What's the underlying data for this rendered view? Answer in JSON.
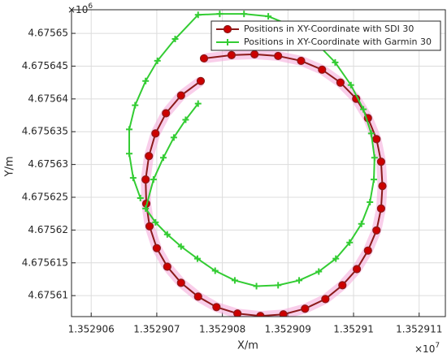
{
  "chart_data": {
    "type": "line",
    "xlabel": "X/m",
    "ylabel": "Y/m",
    "x_multiplier": {
      "base": "×10",
      "exponent": "7"
    },
    "y_multiplier": {
      "base": "×10",
      "exponent": "6"
    },
    "xlim": [
      1.3529057,
      1.3529114
    ],
    "ylim": [
      4.6756068,
      4.6756536
    ],
    "xticks": [
      1.352906,
      1.352907,
      1.352908,
      1.352909,
      1.35291,
      1.352911
    ],
    "yticks": [
      4.67561,
      4.675615,
      4.67562,
      4.675625,
      4.67563,
      4.675635,
      4.67564,
      4.675645,
      4.67565
    ],
    "grid": true,
    "legend": "top-right",
    "series": [
      {
        "name": "Positions in XY-Coordinate with SDI 30",
        "color": "#cc0000",
        "line_color": "#8b1a1a",
        "marker": "circle",
        "x": [
          1.35290767,
          1.35290737,
          1.35290714,
          1.35290698,
          1.35290688,
          1.35290683,
          1.35290684,
          1.35290689,
          1.352907,
          1.35290716,
          1.35290737,
          1.35290763,
          1.35290791,
          1.35290823,
          1.35290858,
          1.35290893,
          1.35290926,
          1.35290957,
          1.35290983,
          1.35291005,
          1.35291022,
          1.35291035,
          1.35291042,
          1.35291044,
          1.35291042,
          1.35291035,
          1.35291022,
          1.35291004,
          1.3529098,
          1.35290952,
          1.3529092,
          1.35290885,
          1.35290849,
          1.35290814,
          1.35290772
        ],
        "values": [
          4.67564273,
          4.67564052,
          4.67563781,
          4.67563473,
          4.67563128,
          4.67562771,
          4.67562402,
          4.67562057,
          4.67561724,
          4.67561441,
          4.67561195,
          4.67560985,
          4.67560825,
          4.67560727,
          4.6756069,
          4.67560714,
          4.67560801,
          4.67560948,
          4.67561158,
          4.67561404,
          4.67561687,
          4.67561995,
          4.67562328,
          4.67562672,
          4.67563042,
          4.67563387,
          4.67563707,
          4.67564003,
          4.67564249,
          4.67564446,
          4.67564581,
          4.67564655,
          4.6756468,
          4.67564668,
          4.67564618
        ]
      },
      {
        "name": "Positions in XY-Coordinate with Garmin 30",
        "color": "#33cc33",
        "line_color": "#33cc33",
        "marker": "plus",
        "x": [
          1.35290763,
          1.35290744,
          1.35290726,
          1.3529071,
          1.35290695,
          1.35290683,
          1.35290698,
          1.35290716,
          1.35290737,
          1.35290762,
          1.35290789,
          1.35290819,
          1.35290852,
          1.35290885,
          1.35290917,
          1.35290947,
          1.35290973,
          1.35290994,
          1.35291012,
          1.35291025,
          1.35291031,
          1.35291032,
          1.35291027,
          1.35291015,
          1.35290996,
          1.35290972,
          1.35290942,
          1.35290907,
          1.3529087,
          1.35290833,
          1.35290796,
          1.35290763,
          1.35290728,
          1.35290701,
          1.35290683,
          1.35290667,
          1.35290658,
          1.35290658,
          1.35290664,
          1.35290675
        ],
        "values": [
          4.67563929,
          4.67563682,
          4.67563411,
          4.67563103,
          4.67562771,
          4.67562328,
          4.67562118,
          4.67561934,
          4.67561749,
          4.67561564,
          4.67561379,
          4.67561232,
          4.67561145,
          4.67561158,
          4.67561232,
          4.67561367,
          4.67561564,
          4.6756181,
          4.67562094,
          4.67562426,
          4.67562771,
          4.67563103,
          4.67563473,
          4.67563842,
          4.67564212,
          4.67564557,
          4.67564865,
          4.67565111,
          4.67565259,
          4.67565296,
          4.67565296,
          4.67565283,
          4.67564914,
          4.67564581,
          4.67564273,
          4.67563904,
          4.67563535,
          4.67563165,
          4.67562796,
          4.67562488
        ]
      }
    ]
  }
}
